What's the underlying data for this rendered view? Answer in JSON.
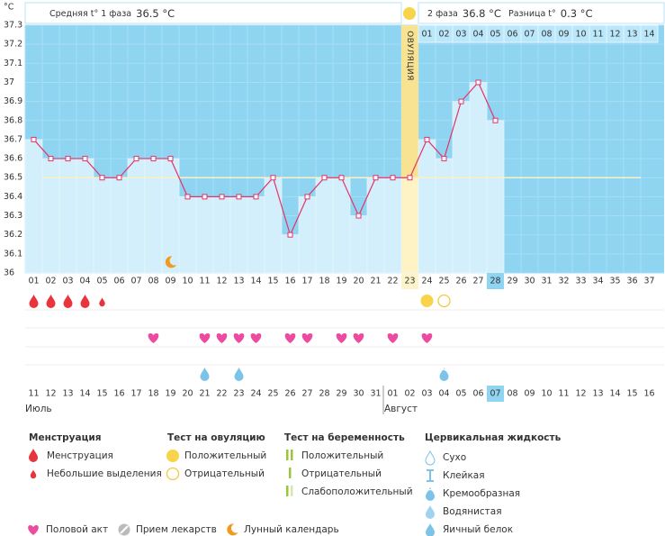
{
  "header": {
    "phase1_label": "Средняя t° 1 фаза",
    "phase1_value": "36.5 °С",
    "phase2_label": "2 фаза",
    "phase2_value": "36.8 °С",
    "diff_label": "Разница t°",
    "diff_value": "0.3 °С"
  },
  "chart_data": {
    "type": "line",
    "y_unit": "°C",
    "ylim": [
      36,
      37.3
    ],
    "yticks": [
      36,
      36.1,
      36.2,
      36.3,
      36.4,
      36.5,
      36.6,
      36.7,
      36.8,
      36.9,
      37,
      37.1,
      37.2,
      37.3
    ],
    "grid": true,
    "categories": [
      "01",
      "02",
      "03",
      "04",
      "05",
      "06",
      "07",
      "08",
      "09",
      "10",
      "11",
      "12",
      "13",
      "14",
      "15",
      "16",
      "17",
      "18",
      "19",
      "20",
      "21",
      "22",
      "23",
      "24",
      "25",
      "26",
      "27",
      "28",
      "29",
      "30",
      "31",
      "32",
      "33",
      "34",
      "35",
      "36",
      "37"
    ],
    "values": [
      36.7,
      36.6,
      36.6,
      36.6,
      36.5,
      36.5,
      36.6,
      36.6,
      36.6,
      36.4,
      36.4,
      36.4,
      36.4,
      36.4,
      36.5,
      36.2,
      36.4,
      36.5,
      36.5,
      36.3,
      36.5,
      36.5,
      36.5,
      36.7,
      36.6,
      36.9,
      37.0,
      36.8,
      null,
      null,
      null,
      null,
      null,
      null,
      null,
      null,
      null
    ],
    "color": "#e2336b",
    "coverline": 36.5,
    "ovulation_day": 23,
    "ovulation_label": "ОВУЛЯЦИЯ",
    "today_day": 28,
    "phase2_days": [
      "01",
      "02",
      "03",
      "04",
      "05",
      "06",
      "07",
      "08",
      "09",
      "10",
      "11",
      "12",
      "13",
      "14"
    ],
    "dates": [
      "11",
      "12",
      "13",
      "14",
      "15",
      "16",
      "17",
      "18",
      "19",
      "20",
      "21",
      "22",
      "23",
      "24",
      "25",
      "26",
      "27",
      "28",
      "29",
      "30",
      "31",
      "01",
      "02",
      "03",
      "04",
      "05",
      "06",
      "07",
      "08",
      "09",
      "10",
      "11",
      "12",
      "13",
      "14",
      "15",
      "16"
    ],
    "date_colors": [
      "#c8102e",
      "#c8102e",
      "#333",
      "#333",
      "#333",
      "#333",
      "#333",
      "#c8102e",
      "#c8102e",
      "#333",
      "#333",
      "#333",
      "#333",
      "#333",
      "#c8102e",
      "#c8102e",
      "#333",
      "#333",
      "#333",
      "#333",
      "#333",
      "#c8102e",
      "#c8102e",
      "#333",
      "#333",
      "#333",
      "#333",
      "#333",
      "#c8102e",
      "#c8102e",
      "#333",
      "#333",
      "#333",
      "#333",
      "#333",
      "#c8102e",
      "#c8102e"
    ],
    "months": [
      {
        "name": "Июль",
        "start_day": 1
      },
      {
        "name": "Август",
        "start_day": 22
      }
    ]
  },
  "legend": {
    "groups": [
      {
        "title": "Менструация",
        "items": [
          "Менструация",
          "Небольшие выделения"
        ]
      },
      {
        "title": "Тест на овуляцию",
        "items": [
          "Положительный",
          "Отрицательный"
        ]
      },
      {
        "title": "Тест на беременность",
        "items": [
          "Положительный",
          "Отрицательный",
          "Слабоположительный"
        ]
      },
      {
        "title": "Цервикальная жидкость",
        "items": [
          "Сухо",
          "Клейкая",
          "Кремообразная",
          "Водянистая",
          "Яичный белок"
        ]
      }
    ],
    "extra": [
      "Половой акт",
      "Прием лекарств",
      "Лунный календарь"
    ]
  }
}
